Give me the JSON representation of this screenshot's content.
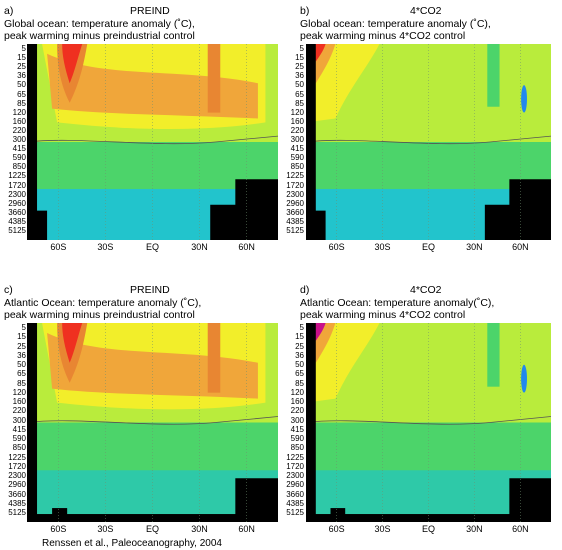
{
  "chart_data": [
    {
      "type": "heatmap",
      "panel_label": "a)",
      "column_title": "PREIND",
      "title_line1": "Global ocean: temperature anomaly (˚C),",
      "title_line2": "peak warming minus preindustrial control",
      "y_ticks": [
        "5",
        "15",
        "25",
        "36",
        "50",
        "65",
        "85",
        "120",
        "160",
        "220",
        "300",
        "415",
        "590",
        "850",
        "1225",
        "1720",
        "2300",
        "2960",
        "3660",
        "4385",
        "5125"
      ],
      "x_ticks": [
        "60S",
        "30S",
        "EQ",
        "30N",
        "60N"
      ],
      "x_values": [
        -60,
        -30,
        0,
        30,
        60
      ],
      "xlim": [
        -80,
        80
      ],
      "ylim_depth_m": [
        0,
        5500
      ],
      "land_mask": "global",
      "warm_anomaly": "strong-southern"
    },
    {
      "type": "heatmap",
      "panel_label": "b)",
      "column_title": "4*CO2",
      "title_line1": "Global ocean: temperature anomaly (˚C),",
      "title_line2": "peak warming minus 4*CO2 control",
      "y_ticks": [
        "5",
        "15",
        "25",
        "36",
        "50",
        "65",
        "85",
        "120",
        "160",
        "220",
        "300",
        "415",
        "590",
        "850",
        "1225",
        "1720",
        "2300",
        "2960",
        "3660",
        "4385",
        "5125"
      ],
      "x_ticks": [
        "60S",
        "30S",
        "EQ",
        "30N",
        "60N"
      ],
      "x_values": [
        -60,
        -30,
        0,
        30,
        60
      ],
      "xlim": [
        -80,
        80
      ],
      "ylim_depth_m": [
        0,
        5500
      ],
      "land_mask": "global",
      "warm_anomaly": "weak"
    },
    {
      "type": "heatmap",
      "panel_label": "c)",
      "column_title": "PREIND",
      "title_line1": "Atlantic Ocean: temperature anomaly (˚C),",
      "title_line2": "peak warming minus preindustrial control",
      "y_ticks": [
        "5",
        "15",
        "25",
        "36",
        "50",
        "65",
        "85",
        "120",
        "160",
        "220",
        "300",
        "415",
        "590",
        "850",
        "1225",
        "1720",
        "2300",
        "2960",
        "3660",
        "4385",
        "5125"
      ],
      "x_ticks": [
        "60S",
        "30S",
        "EQ",
        "30N",
        "60N"
      ],
      "x_values": [
        -60,
        -30,
        0,
        30,
        60
      ],
      "xlim": [
        -80,
        80
      ],
      "ylim_depth_m": [
        0,
        5500
      ],
      "land_mask": "atlantic",
      "warm_anomaly": "strong-southern"
    },
    {
      "type": "heatmap",
      "panel_label": "d)",
      "column_title": "4*CO2",
      "title_line1": "Atlantic Ocean: temperature anomaly(˚C),",
      "title_line2": "peak warming minus 4*CO2 control",
      "y_ticks": [
        "5",
        "15",
        "25",
        "36",
        "50",
        "65",
        "85",
        "120",
        "160",
        "220",
        "300",
        "415",
        "590",
        "850",
        "1225",
        "1720",
        "2300",
        "2960",
        "3660",
        "4385",
        "5125"
      ],
      "x_ticks": [
        "60S",
        "30S",
        "EQ",
        "30N",
        "60N"
      ],
      "x_values": [
        -60,
        -30,
        0,
        30,
        60
      ],
      "xlim": [
        -80,
        80
      ],
      "ylim_depth_m": [
        0,
        5500
      ],
      "land_mask": "atlantic",
      "warm_anomaly": "weak"
    }
  ],
  "credit": "Renssen et al., Paleoceanography, 2004",
  "colors": {
    "land": "#000000",
    "deep_cyan": "#22c4cc",
    "teal": "#2ec9a8",
    "green": "#4cd46a",
    "lime": "#b9ec3c",
    "yellow": "#f2ee2a",
    "orange": "#f0a63a",
    "dark_orange": "#e88632",
    "red": "#ef3020",
    "magenta": "#c8108a",
    "blue": "#2288ee"
  }
}
